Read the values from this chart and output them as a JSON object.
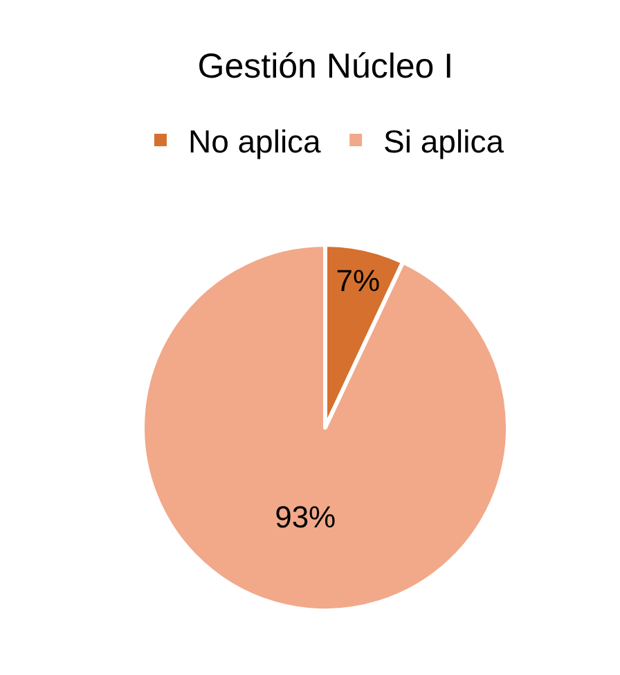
{
  "chart_data": {
    "type": "pie",
    "title": "Gestión Núcleo I",
    "categories": [
      "No aplica",
      "Si aplica"
    ],
    "values": [
      7,
      93
    ],
    "colors": [
      "#d5702e",
      "#f1a98a"
    ],
    "value_labels": [
      "7%",
      "93%"
    ],
    "legend": "top"
  }
}
